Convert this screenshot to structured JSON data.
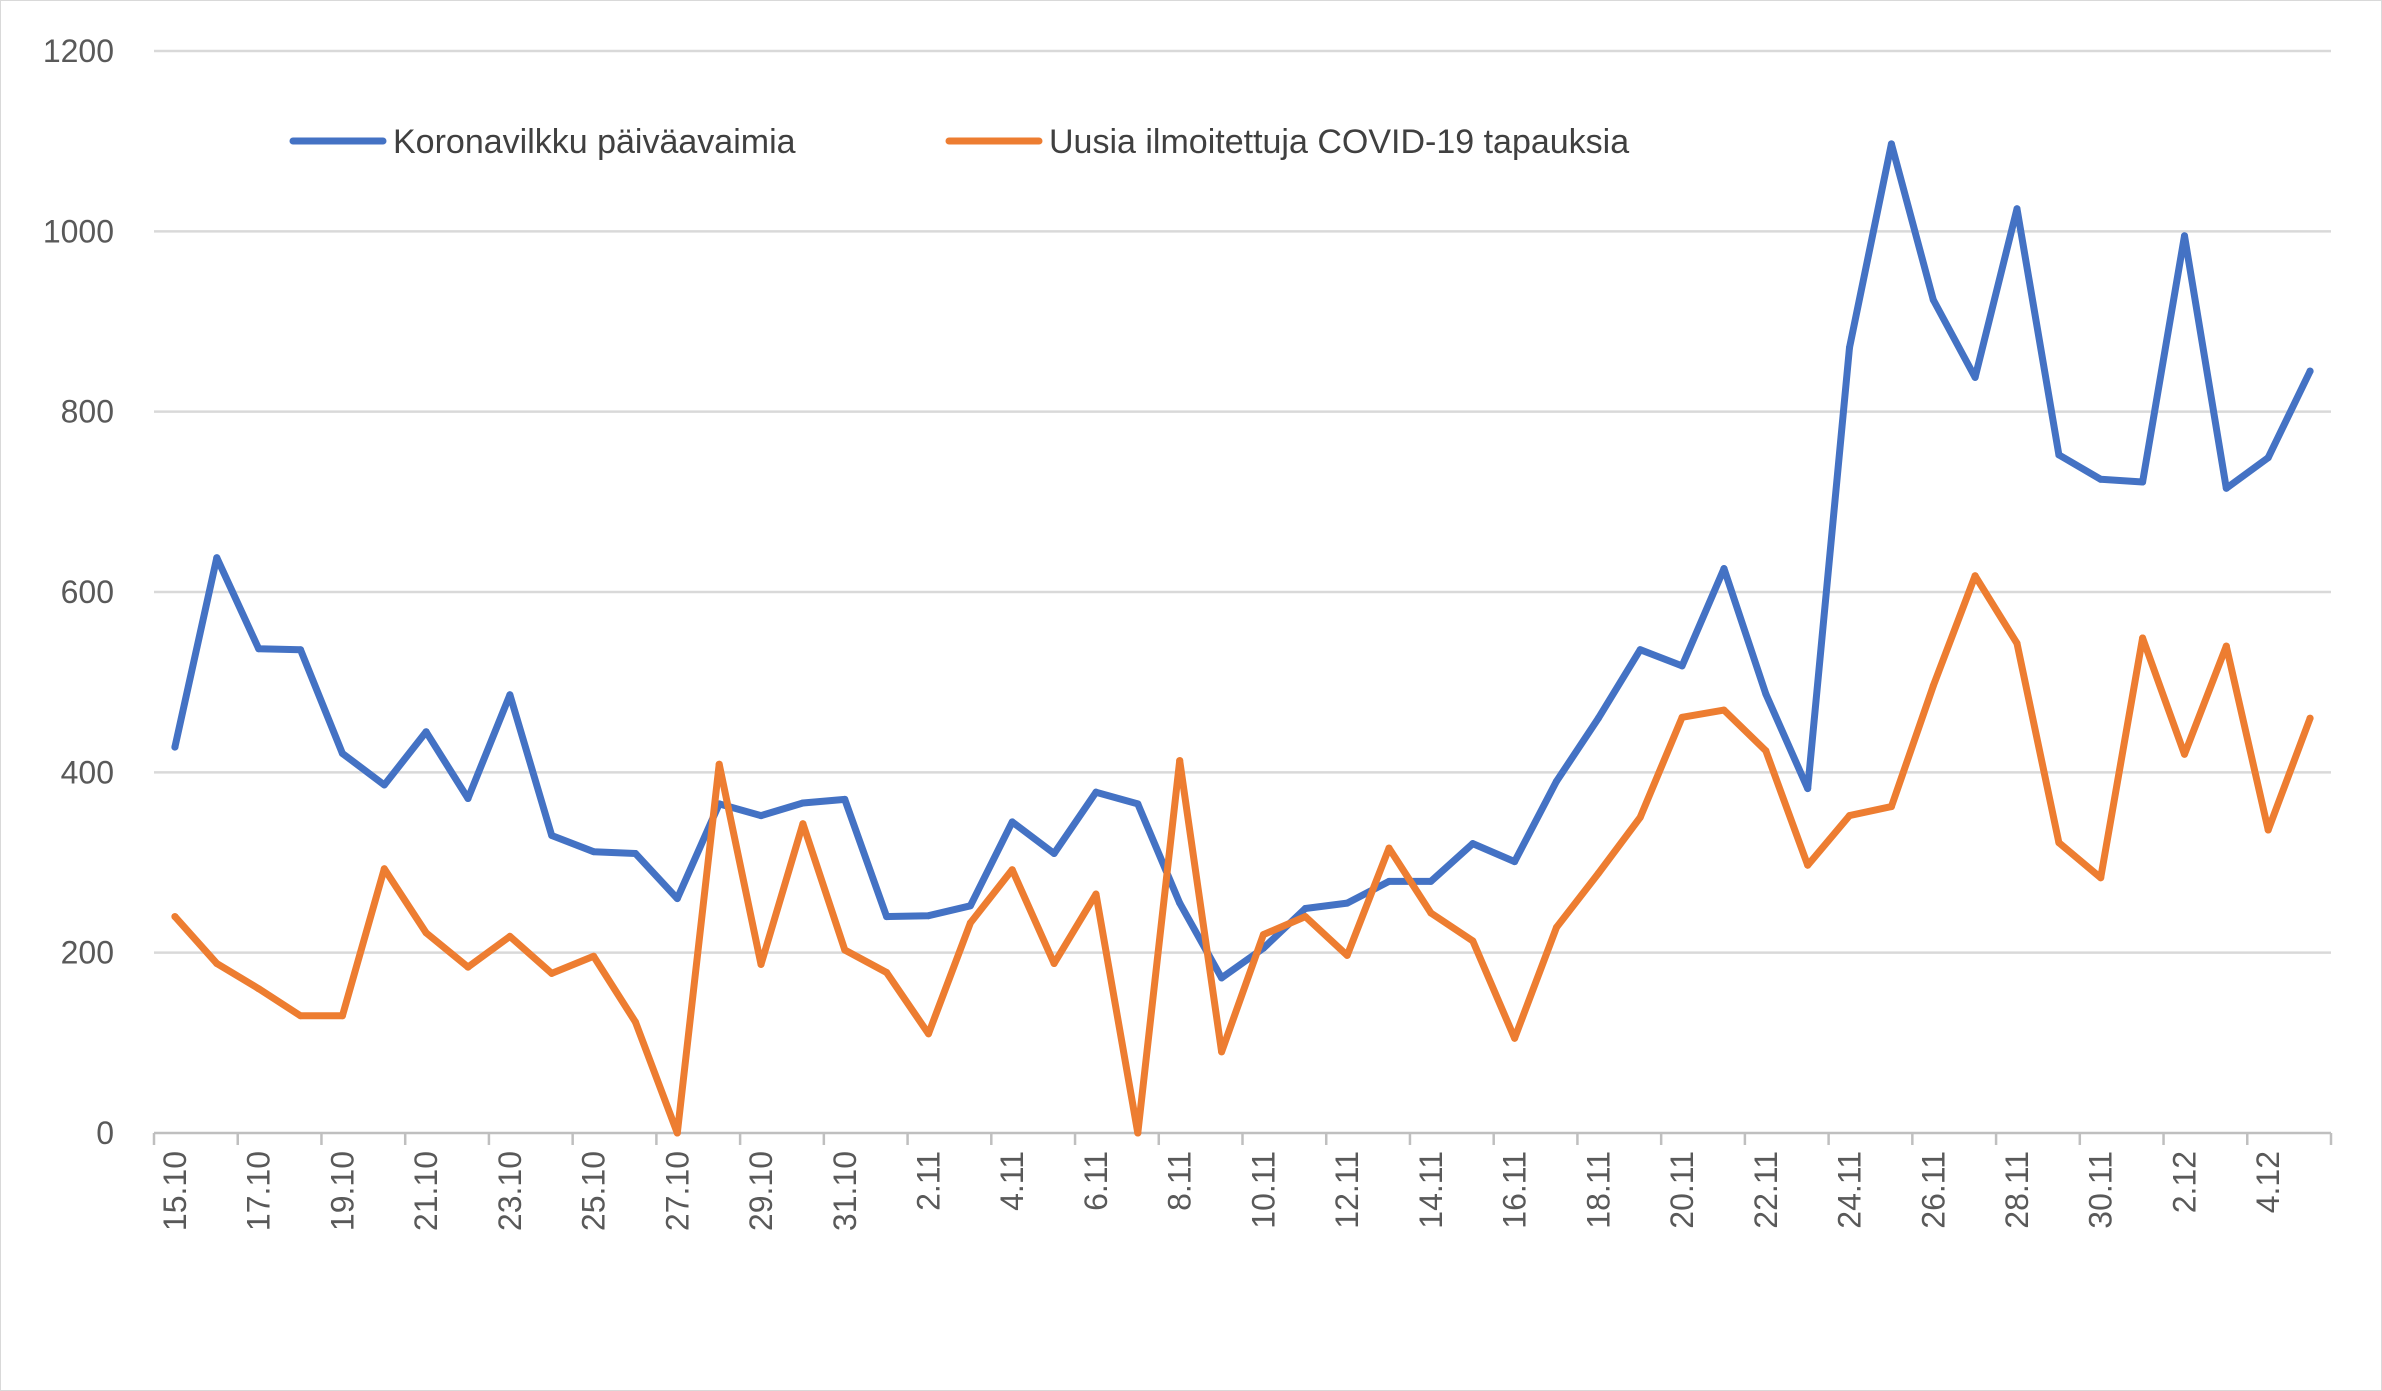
{
  "chart_data": {
    "type": "line",
    "ylim": [
      0,
      1200
    ],
    "yticks": [
      0,
      200,
      400,
      600,
      800,
      1000,
      1200
    ],
    "grid": true,
    "legend_position": "top-left",
    "x": [
      "15.10",
      "16.10",
      "17.10",
      "18.10",
      "19.10",
      "20.10",
      "21.10",
      "22.10",
      "23.10",
      "24.10",
      "25.10",
      "26.10",
      "27.10",
      "28.10",
      "29.10",
      "30.10",
      "31.10",
      "1.11",
      "2.11",
      "3.11",
      "4.11",
      "5.11",
      "6.11",
      "7.11",
      "8.11",
      "9.11",
      "10.11",
      "11.11",
      "12.11",
      "13.11",
      "14.11",
      "15.11",
      "16.11",
      "17.11",
      "18.11",
      "19.11",
      "20.11",
      "21.11",
      "22.11",
      "23.11",
      "24.11",
      "25.11",
      "26.11",
      "27.11",
      "28.11",
      "29.11",
      "30.11",
      "1.12",
      "2.12",
      "3.12",
      "4.12",
      "5.12"
    ],
    "xtick_labels": [
      "15.10",
      "17.10",
      "19.10",
      "21.10",
      "23.10",
      "25.10",
      "27.10",
      "29.10",
      "31.10",
      "2.11",
      "4.11",
      "6.11",
      "8.11",
      "10.11",
      "12.11",
      "14.11",
      "16.11",
      "18.11",
      "20.11",
      "22.11",
      "24.11",
      "26.11",
      "28.11",
      "30.11",
      "2.12",
      "4.12"
    ],
    "series": [
      {
        "name": "Koronavilkku päiväavaimia",
        "color": "#4472C4",
        "values": [
          428,
          638,
          537,
          536,
          421,
          386,
          445,
          371,
          486,
          330,
          312,
          310,
          260,
          365,
          352,
          366,
          370,
          240,
          241,
          252,
          345,
          310,
          378,
          365,
          255,
          172,
          205,
          249,
          255,
          279,
          279,
          321,
          301,
          390,
          460,
          536,
          518,
          626,
          487,
          382,
          871,
          1097,
          924,
          838,
          1025,
          752,
          725,
          722,
          995,
          715,
          749,
          845
        ]
      },
      {
        "name": "Uusia ilmoitettuja COVID-19 tapauksia",
        "color": "#ED7D31",
        "values": [
          240,
          188,
          160,
          130,
          130,
          293,
          222,
          184,
          218,
          177,
          196,
          123,
          0,
          409,
          187,
          343,
          203,
          178,
          110,
          233,
          292,
          188,
          265,
          0,
          413,
          90,
          220,
          240,
          197,
          316,
          244,
          213,
          105,
          228,
          288,
          350,
          461,
          469,
          424,
          297,
          352,
          362,
          496,
          618,
          543,
          322,
          283,
          549,
          420,
          540,
          336,
          460
        ]
      }
    ]
  }
}
